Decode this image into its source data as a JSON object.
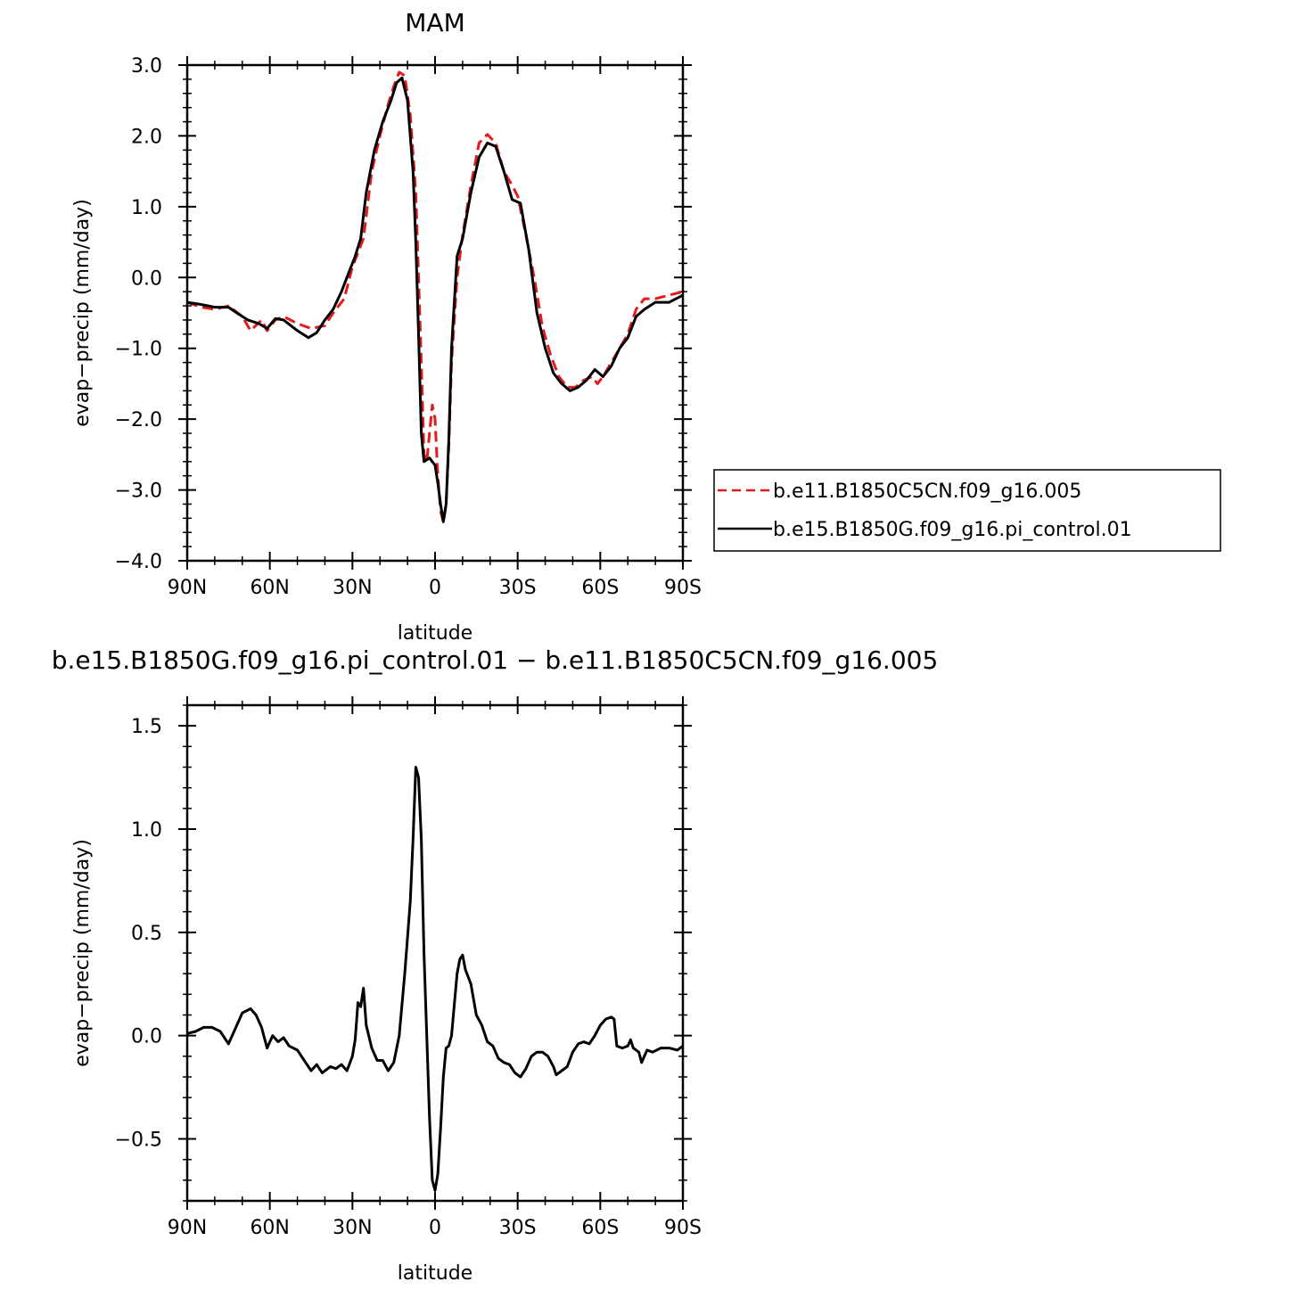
{
  "chart_data": [
    {
      "type": "line",
      "title": "MAM",
      "xlabel": "latitude",
      "ylabel": "evap−precip (mm/day)",
      "xlim": [
        90,
        -90
      ],
      "ylim": [
        -4.0,
        3.0
      ],
      "x_ticks": [
        {
          "value": 90,
          "label": "90N"
        },
        {
          "value": 60,
          "label": "60N"
        },
        {
          "value": 30,
          "label": "30N"
        },
        {
          "value": 0,
          "label": "0"
        },
        {
          "value": -30,
          "label": "30S"
        },
        {
          "value": -60,
          "label": "60S"
        },
        {
          "value": -90,
          "label": "90S"
        }
      ],
      "y_ticks": [
        {
          "value": 3.0,
          "label": "3.0"
        },
        {
          "value": 2.0,
          "label": "2.0"
        },
        {
          "value": 1.0,
          "label": "1.0"
        },
        {
          "value": 0.0,
          "label": "0.0"
        },
        {
          "value": -1.0,
          "label": "−1.0"
        },
        {
          "value": -2.0,
          "label": "−2.0"
        },
        {
          "value": -3.0,
          "label": "−3.0"
        },
        {
          "value": -4.0,
          "label": "−4.0"
        }
      ],
      "legend_position": "right",
      "series": [
        {
          "name": "b.e11.B1850C5CN.f09_g16.005",
          "color": "#e41a1c",
          "dash": "dashed",
          "points": [
            [
              90,
              -0.35
            ],
            [
              85,
              -0.42
            ],
            [
              80,
              -0.45
            ],
            [
              75,
              -0.4
            ],
            [
              70,
              -0.55
            ],
            [
              67,
              -0.75
            ],
            [
              63,
              -0.6
            ],
            [
              61,
              -0.75
            ],
            [
              58,
              -0.6
            ],
            [
              55,
              -0.55
            ],
            [
              50,
              -0.65
            ],
            [
              45,
              -0.72
            ],
            [
              40,
              -0.68
            ],
            [
              37,
              -0.5
            ],
            [
              33,
              -0.3
            ],
            [
              30,
              0.15
            ],
            [
              28,
              0.35
            ],
            [
              26,
              0.55
            ],
            [
              23,
              1.5
            ],
            [
              20,
              2.0
            ],
            [
              17,
              2.45
            ],
            [
              15,
              2.7
            ],
            [
              13,
              2.9
            ],
            [
              11,
              2.85
            ],
            [
              9,
              2.3
            ],
            [
              7,
              1.2
            ],
            [
              6,
              0.0
            ],
            [
              5,
              -1.2
            ],
            [
              4,
              -2.5
            ],
            [
              3,
              -2.6
            ],
            [
              2,
              -2.2
            ],
            [
              1,
              -1.8
            ],
            [
              0,
              -2.0
            ],
            [
              -1,
              -2.8
            ],
            [
              -2,
              -3.3
            ],
            [
              -3,
              -3.45
            ],
            [
              -4,
              -3.2
            ],
            [
              -5,
              -2.4
            ],
            [
              -6,
              -1.2
            ],
            [
              -8,
              0.0
            ],
            [
              -10,
              0.6
            ],
            [
              -13,
              1.3
            ],
            [
              -16,
              1.9
            ],
            [
              -19,
              2.02
            ],
            [
              -22,
              1.9
            ],
            [
              -25,
              1.5
            ],
            [
              -28,
              1.3
            ],
            [
              -30,
              1.15
            ],
            [
              -33,
              0.6
            ],
            [
              -36,
              0.0
            ],
            [
              -39,
              -0.7
            ],
            [
              -42,
              -1.1
            ],
            [
              -45,
              -1.4
            ],
            [
              -48,
              -1.55
            ],
            [
              -51,
              -1.55
            ],
            [
              -54,
              -1.45
            ],
            [
              -57,
              -1.4
            ],
            [
              -59,
              -1.5
            ],
            [
              -61,
              -1.4
            ],
            [
              -64,
              -1.2
            ],
            [
              -67,
              -1.0
            ],
            [
              -70,
              -0.8
            ],
            [
              -73,
              -0.45
            ],
            [
              -76,
              -0.3
            ],
            [
              -80,
              -0.3
            ],
            [
              -85,
              -0.25
            ],
            [
              -90,
              -0.2
            ]
          ]
        },
        {
          "name": "b.e15.B1850G.f09_g16.pi_control.01",
          "color": "#000000",
          "dash": "solid",
          "points": [
            [
              90,
              -0.35
            ],
            [
              85,
              -0.38
            ],
            [
              80,
              -0.42
            ],
            [
              75,
              -0.42
            ],
            [
              72,
              -0.5
            ],
            [
              68,
              -0.6
            ],
            [
              64,
              -0.65
            ],
            [
              61,
              -0.72
            ],
            [
              58,
              -0.58
            ],
            [
              55,
              -0.6
            ],
            [
              50,
              -0.75
            ],
            [
              46,
              -0.85
            ],
            [
              43,
              -0.78
            ],
            [
              40,
              -0.6
            ],
            [
              37,
              -0.45
            ],
            [
              34,
              -0.2
            ],
            [
              31,
              0.1
            ],
            [
              29,
              0.3
            ],
            [
              27,
              0.55
            ],
            [
              25,
              1.2
            ],
            [
              22,
              1.8
            ],
            [
              19,
              2.2
            ],
            [
              16,
              2.5
            ],
            [
              14,
              2.75
            ],
            [
              12,
              2.82
            ],
            [
              10,
              2.5
            ],
            [
              8,
              1.5
            ],
            [
              7,
              0.5
            ],
            [
              6,
              -0.8
            ],
            [
              5,
              -2.2
            ],
            [
              4,
              -2.6
            ],
            [
              2,
              -2.55
            ],
            [
              0,
              -2.65
            ],
            [
              -1,
              -2.9
            ],
            [
              -2,
              -3.2
            ],
            [
              -3,
              -3.45
            ],
            [
              -4,
              -3.2
            ],
            [
              -5,
              -2.3
            ],
            [
              -6,
              -1.0
            ],
            [
              -8,
              0.3
            ],
            [
              -10,
              0.55
            ],
            [
              -13,
              1.2
            ],
            [
              -16,
              1.7
            ],
            [
              -19,
              1.9
            ],
            [
              -22,
              1.85
            ],
            [
              -25,
              1.5
            ],
            [
              -28,
              1.1
            ],
            [
              -31,
              1.05
            ],
            [
              -34,
              0.4
            ],
            [
              -37,
              -0.5
            ],
            [
              -40,
              -1.0
            ],
            [
              -43,
              -1.35
            ],
            [
              -46,
              -1.5
            ],
            [
              -49,
              -1.6
            ],
            [
              -52,
              -1.55
            ],
            [
              -55,
              -1.45
            ],
            [
              -58,
              -1.3
            ],
            [
              -61,
              -1.4
            ],
            [
              -64,
              -1.25
            ],
            [
              -67,
              -1.0
            ],
            [
              -70,
              -0.85
            ],
            [
              -73,
              -0.55
            ],
            [
              -76,
              -0.45
            ],
            [
              -80,
              -0.35
            ],
            [
              -85,
              -0.35
            ],
            [
              -90,
              -0.25
            ]
          ]
        }
      ]
    },
    {
      "type": "line",
      "title": "b.e15.B1850G.f09_g16.pi_control.01 − b.e11.B1850C5CN.f09_g16.005",
      "xlabel": "latitude",
      "ylabel": "evap−precip (mm/day)",
      "xlim": [
        90,
        -90
      ],
      "ylim": [
        -0.8,
        1.6
      ],
      "x_ticks": [
        {
          "value": 90,
          "label": "90N"
        },
        {
          "value": 60,
          "label": "60N"
        },
        {
          "value": 30,
          "label": "30N"
        },
        {
          "value": 0,
          "label": "0"
        },
        {
          "value": -30,
          "label": "30S"
        },
        {
          "value": -60,
          "label": "60S"
        },
        {
          "value": -90,
          "label": "90S"
        }
      ],
      "y_ticks": [
        {
          "value": 1.5,
          "label": "1.5"
        },
        {
          "value": 1.0,
          "label": "1.0"
        },
        {
          "value": 0.5,
          "label": "0.5"
        },
        {
          "value": 0.0,
          "label": "0.0"
        },
        {
          "value": -0.5,
          "label": "−0.5"
        }
      ],
      "series": [
        {
          "name": "",
          "color": "#000000",
          "dash": "solid",
          "points": [
            [
              90,
              0.01
            ],
            [
              87,
              0.02
            ],
            [
              84,
              0.04
            ],
            [
              81,
              0.04
            ],
            [
              78,
              0.02
            ],
            [
              75,
              -0.04
            ],
            [
              72,
              0.05
            ],
            [
              70,
              0.11
            ],
            [
              67,
              0.13
            ],
            [
              65,
              0.1
            ],
            [
              63,
              0.04
            ],
            [
              61,
              -0.06
            ],
            [
              59,
              0.0
            ],
            [
              57,
              -0.03
            ],
            [
              55,
              -0.01
            ],
            [
              53,
              -0.05
            ],
            [
              50,
              -0.07
            ],
            [
              47,
              -0.13
            ],
            [
              45,
              -0.17
            ],
            [
              43,
              -0.14
            ],
            [
              41,
              -0.18
            ],
            [
              38,
              -0.15
            ],
            [
              36,
              -0.16
            ],
            [
              34,
              -0.14
            ],
            [
              32,
              -0.17
            ],
            [
              30,
              -0.1
            ],
            [
              29,
              -0.02
            ],
            [
              28,
              0.16
            ],
            [
              27,
              0.14
            ],
            [
              26,
              0.23
            ],
            [
              25,
              0.05
            ],
            [
              23,
              -0.06
            ],
            [
              21,
              -0.12
            ],
            [
              19,
              -0.12
            ],
            [
              17,
              -0.17
            ],
            [
              15,
              -0.13
            ],
            [
              13,
              0.0
            ],
            [
              11,
              0.3
            ],
            [
              9,
              0.65
            ],
            [
              8,
              0.95
            ],
            [
              7,
              1.3
            ],
            [
              6,
              1.25
            ],
            [
              5,
              0.95
            ],
            [
              4,
              0.4
            ],
            [
              3,
              0.0
            ],
            [
              2,
              -0.4
            ],
            [
              1,
              -0.7
            ],
            [
              0,
              -0.75
            ],
            [
              -1,
              -0.67
            ],
            [
              -2,
              -0.45
            ],
            [
              -3,
              -0.2
            ],
            [
              -4,
              -0.06
            ],
            [
              -5,
              -0.05
            ],
            [
              -6,
              0.0
            ],
            [
              -7,
              0.15
            ],
            [
              -8,
              0.3
            ],
            [
              -9,
              0.37
            ],
            [
              -10,
              0.39
            ],
            [
              -11,
              0.32
            ],
            [
              -13,
              0.25
            ],
            [
              -15,
              0.1
            ],
            [
              -17,
              0.05
            ],
            [
              -19,
              -0.03
            ],
            [
              -21,
              -0.05
            ],
            [
              -23,
              -0.11
            ],
            [
              -25,
              -0.13
            ],
            [
              -27,
              -0.14
            ],
            [
              -29,
              -0.18
            ],
            [
              -31,
              -0.2
            ],
            [
              -33,
              -0.16
            ],
            [
              -35,
              -0.1
            ],
            [
              -37,
              -0.08
            ],
            [
              -39,
              -0.08
            ],
            [
              -41,
              -0.1
            ],
            [
              -43,
              -0.15
            ],
            [
              -44,
              -0.19
            ],
            [
              -46,
              -0.17
            ],
            [
              -48,
              -0.15
            ],
            [
              -50,
              -0.08
            ],
            [
              -52,
              -0.04
            ],
            [
              -54,
              -0.03
            ],
            [
              -56,
              -0.04
            ],
            [
              -58,
              0.0
            ],
            [
              -60,
              0.05
            ],
            [
              -62,
              0.08
            ],
            [
              -64,
              0.09
            ],
            [
              -65,
              0.08
            ],
            [
              -66,
              -0.05
            ],
            [
              -68,
              -0.06
            ],
            [
              -70,
              -0.05
            ],
            [
              -71,
              -0.02
            ],
            [
              -72,
              -0.06
            ],
            [
              -74,
              -0.08
            ],
            [
              -75,
              -0.13
            ],
            [
              -77,
              -0.07
            ],
            [
              -79,
              -0.08
            ],
            [
              -82,
              -0.06
            ],
            [
              -85,
              -0.06
            ],
            [
              -88,
              -0.07
            ],
            [
              -90,
              -0.05
            ]
          ]
        }
      ]
    }
  ]
}
